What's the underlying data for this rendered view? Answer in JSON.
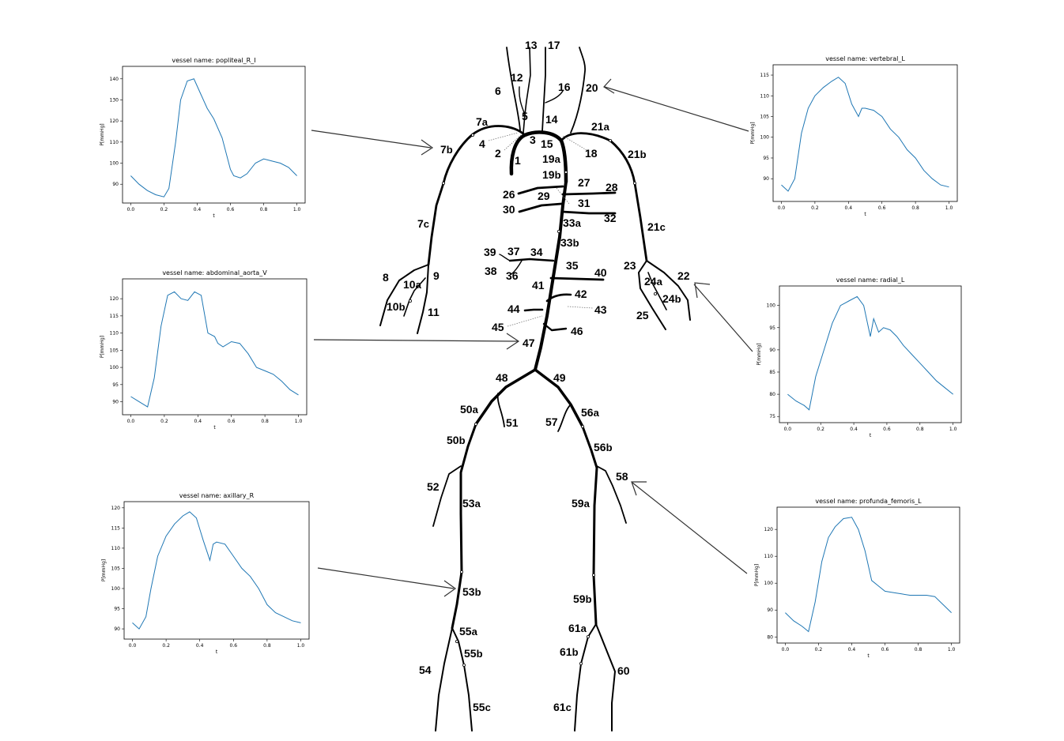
{
  "diagram": {
    "vessel_labels": [
      "1",
      "2",
      "3",
      "4",
      "5",
      "6",
      "7a",
      "7b",
      "7c",
      "8",
      "9",
      "10a",
      "10b",
      "11",
      "12",
      "13",
      "14",
      "15",
      "16",
      "17",
      "18",
      "19a",
      "19b",
      "20",
      "21a",
      "21b",
      "21c",
      "22",
      "23",
      "24a",
      "24b",
      "25",
      "26",
      "27",
      "28",
      "29",
      "30",
      "31",
      "32",
      "33a",
      "33b",
      "34",
      "35",
      "36",
      "37",
      "38",
      "39",
      "40",
      "41",
      "42",
      "43",
      "44",
      "45",
      "46",
      "47",
      "48",
      "49",
      "50a",
      "50b",
      "51",
      "52",
      "53a",
      "53b",
      "54",
      "55a",
      "55b",
      "55c",
      "56a",
      "56b",
      "57",
      "58",
      "59a",
      "59b",
      "60",
      "61a",
      "61b",
      "61c"
    ]
  },
  "plots": [
    {
      "title": "vessel name: popliteal_R_I",
      "ylabel": "P[mmHg]",
      "xlabel": "t",
      "xticks": [
        "0.0",
        "0.2",
        "0.4",
        "0.6",
        "0.8",
        "1.0"
      ],
      "yticks": [
        "90",
        "100",
        "110",
        "120",
        "130",
        "140"
      ],
      "xlim": [
        0,
        1
      ],
      "ylim": [
        84,
        143
      ],
      "x": [
        0,
        0.05,
        0.1,
        0.15,
        0.2,
        0.23,
        0.27,
        0.3,
        0.34,
        0.38,
        0.42,
        0.46,
        0.5,
        0.55,
        0.6,
        0.62,
        0.66,
        0.7,
        0.75,
        0.8,
        0.85,
        0.9,
        0.95,
        1.0
      ],
      "y": [
        94,
        90,
        87,
        85,
        84,
        88,
        110,
        130,
        139,
        140,
        133,
        126,
        121,
        112,
        97,
        94,
        93,
        95,
        100,
        102,
        101,
        100,
        98,
        94
      ]
    },
    {
      "title": "vessel name: abdominal_aorta_V",
      "ylabel": "P[mmHg]",
      "xlabel": "t",
      "xticks": [
        "0.0",
        "0.2",
        "0.4",
        "0.6",
        "0.8",
        "1.0"
      ],
      "yticks": [
        "90",
        "95",
        "100",
        "105",
        "110",
        "115",
        "120"
      ],
      "xlim": [
        0,
        1
      ],
      "ylim": [
        88,
        124
      ],
      "x": [
        0,
        0.05,
        0.1,
        0.14,
        0.18,
        0.22,
        0.26,
        0.3,
        0.34,
        0.38,
        0.42,
        0.46,
        0.5,
        0.52,
        0.55,
        0.6,
        0.65,
        0.7,
        0.75,
        0.8,
        0.85,
        0.9,
        0.95,
        1.0
      ],
      "y": [
        91.5,
        90,
        88.5,
        97,
        112,
        121,
        122,
        120,
        119.5,
        122,
        121,
        110,
        109,
        107,
        106,
        107.5,
        107,
        104,
        100,
        99,
        98,
        96,
        93.5,
        92
      ]
    },
    {
      "title": "vessel name: axillary_R",
      "ylabel": "P[mmHg]",
      "xlabel": "t",
      "xticks": [
        "0.0",
        "0.2",
        "0.4",
        "0.6",
        "0.8",
        "1.0"
      ],
      "yticks": [
        "90",
        "95",
        "100",
        "105",
        "110",
        "115",
        "120"
      ],
      "xlim": [
        0,
        1
      ],
      "ylim": [
        89,
        120
      ],
      "x": [
        0,
        0.04,
        0.08,
        0.11,
        0.15,
        0.2,
        0.25,
        0.3,
        0.34,
        0.38,
        0.42,
        0.46,
        0.48,
        0.5,
        0.55,
        0.6,
        0.65,
        0.7,
        0.75,
        0.8,
        0.85,
        0.9,
        0.95,
        1.0
      ],
      "y": [
        91.5,
        90,
        93,
        100,
        108,
        113,
        116,
        118,
        119,
        117.5,
        112,
        107,
        111,
        111.5,
        111,
        108,
        105,
        103,
        100,
        96,
        94,
        93,
        92,
        91.5
      ]
    },
    {
      "title": "vessel name: vertebral_L",
      "ylabel": "P[mmHg]",
      "xlabel": "t",
      "xticks": [
        "0.0",
        "0.2",
        "0.4",
        "0.6",
        "0.8",
        "1.0"
      ],
      "yticks": [
        "90",
        "95",
        "100",
        "105",
        "110",
        "115"
      ],
      "xlim": [
        0,
        1
      ],
      "ylim": [
        86,
        116
      ],
      "x": [
        0,
        0.04,
        0.08,
        0.12,
        0.16,
        0.2,
        0.25,
        0.3,
        0.34,
        0.38,
        0.42,
        0.46,
        0.48,
        0.5,
        0.55,
        0.6,
        0.65,
        0.7,
        0.75,
        0.8,
        0.85,
        0.9,
        0.95,
        1.0
      ],
      "y": [
        88.5,
        87,
        90,
        101,
        107,
        110,
        112,
        113.5,
        114.5,
        113,
        108,
        105,
        107,
        107,
        106.5,
        105,
        102,
        100,
        97,
        95,
        92,
        90,
        88.5,
        88
      ]
    },
    {
      "title": "vessel name: radial_L",
      "ylabel": "P[mmHg]",
      "xlabel": "t",
      "xticks": [
        "0.0",
        "0.2",
        "0.4",
        "0.6",
        "0.8",
        "1.0"
      ],
      "yticks": [
        "75",
        "80",
        "85",
        "90",
        "95",
        "100"
      ],
      "xlim": [
        0,
        1
      ],
      "ylim": [
        75,
        103
      ],
      "x": [
        0,
        0.05,
        0.1,
        0.13,
        0.17,
        0.22,
        0.27,
        0.32,
        0.37,
        0.42,
        0.46,
        0.5,
        0.52,
        0.55,
        0.58,
        0.62,
        0.66,
        0.7,
        0.75,
        0.8,
        0.85,
        0.9,
        0.95,
        1.0
      ],
      "y": [
        80,
        78.5,
        77.5,
        76.5,
        84,
        90,
        96,
        100,
        101,
        102,
        100,
        93,
        97,
        94,
        95,
        94.5,
        93,
        91,
        89,
        87,
        85,
        83,
        81.5,
        80
      ]
    },
    {
      "title": "vessel name: profunda_femoris_L",
      "ylabel": "P[mmHg]",
      "xlabel": "t",
      "xticks": [
        "0.0",
        "0.2",
        "0.4",
        "0.6",
        "0.8",
        "1.0"
      ],
      "yticks": [
        "80",
        "90",
        "100",
        "110",
        "120"
      ],
      "xlim": [
        0,
        1
      ],
      "ylim": [
        80,
        126
      ],
      "x": [
        0,
        0.05,
        0.1,
        0.14,
        0.18,
        0.22,
        0.26,
        0.3,
        0.35,
        0.4,
        0.44,
        0.48,
        0.52,
        0.56,
        0.6,
        0.65,
        0.7,
        0.75,
        0.8,
        0.85,
        0.9,
        0.95,
        1.0
      ],
      "y": [
        89,
        86,
        84,
        82,
        93,
        108,
        117,
        121,
        124,
        124.5,
        120,
        112,
        101,
        99,
        97,
        96.5,
        96,
        95.5,
        95.5,
        95.5,
        95,
        92,
        89
      ]
    }
  ]
}
